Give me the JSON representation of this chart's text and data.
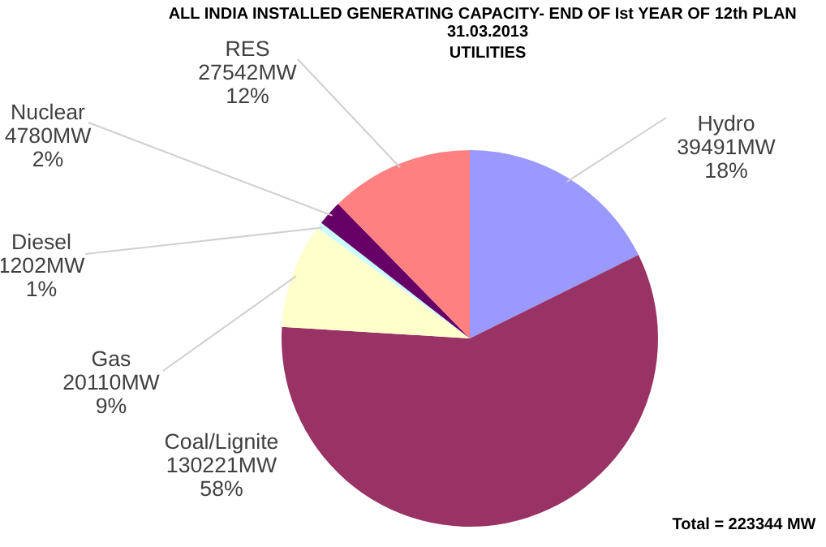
{
  "chart_data": {
    "type": "pie",
    "title": "ALL INDIA INSTALLED GENERATING  CAPACITY-  END OF Ist YEAR OF 12th PLAN\n31.03.2013\nUTILITIES",
    "categories": [
      "Hydro",
      "Coal/Lignite",
      "Gas",
      "Diesel",
      "Nuclear",
      "RES"
    ],
    "values": [
      39491,
      130221,
      20110,
      1202,
      4780,
      27542
    ],
    "value_labels": [
      "39491MW\n18%",
      "130221MW\n58%",
      "20110MW\n9%",
      "1202MW\n1%",
      "4780MW\n2%",
      "27542MW\n12%"
    ],
    "colors": [
      "#9999ff",
      "#993366",
      "#ffffcc",
      "#ccffff",
      "#660066",
      "#ff8080"
    ],
    "annotations": [
      "Total  = 223344 MW"
    ]
  }
}
